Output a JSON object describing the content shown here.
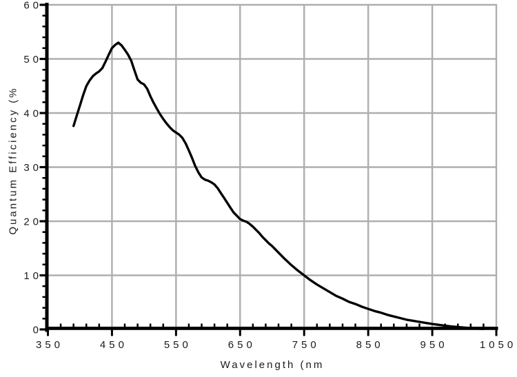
{
  "chart_data": {
    "type": "line",
    "title": "",
    "xlabel": "Wavelength (nm",
    "ylabel": "Quantum Efficiency (%",
    "xlim": [
      350,
      1050
    ],
    "ylim": [
      0,
      60
    ],
    "x_major_ticks": [
      350,
      450,
      550,
      650,
      750,
      850,
      950,
      1050
    ],
    "x_tick_labels": [
      "350",
      "450",
      "550",
      "650",
      "750",
      "850",
      "950",
      "1050"
    ],
    "x_minor_step": 20,
    "y_major_ticks": [
      0,
      10,
      20,
      30,
      40,
      50,
      60
    ],
    "y_tick_labels": [
      "0",
      "10",
      "20",
      "30",
      "40",
      "50",
      "60"
    ],
    "y_minor_step": 2,
    "grid": true,
    "legend": "none",
    "series": [
      {
        "name": "quantum-efficiency-curve",
        "x": [
          390,
          395,
          400,
          405,
          410,
          415,
          420,
          425,
          430,
          435,
          440,
          445,
          450,
          455,
          460,
          465,
          470,
          475,
          480,
          485,
          490,
          495,
          500,
          505,
          510,
          515,
          520,
          525,
          530,
          535,
          540,
          545,
          550,
          555,
          560,
          565,
          570,
          575,
          580,
          585,
          590,
          595,
          600,
          605,
          610,
          615,
          620,
          625,
          630,
          635,
          640,
          645,
          650,
          655,
          660,
          665,
          670,
          675,
          680,
          685,
          690,
          695,
          700,
          710,
          720,
          730,
          740,
          750,
          760,
          770,
          780,
          790,
          800,
          810,
          820,
          830,
          840,
          850,
          860,
          870,
          880,
          890,
          900,
          910,
          920,
          930,
          940,
          950,
          960,
          970,
          980,
          990,
          1000,
          1010,
          1020,
          1030
        ],
        "y": [
          37.6,
          39.5,
          41.4,
          43.3,
          45.0,
          46.0,
          46.8,
          47.3,
          47.7,
          48.3,
          49.5,
          50.8,
          52.0,
          52.6,
          53.0,
          52.5,
          51.7,
          50.8,
          49.7,
          47.9,
          46.2,
          45.6,
          45.3,
          44.5,
          43.1,
          41.9,
          40.8,
          39.8,
          38.9,
          38.1,
          37.4,
          36.8,
          36.4,
          36.0,
          35.4,
          34.4,
          33.1,
          31.7,
          30.2,
          29.0,
          28.1,
          27.7,
          27.5,
          27.2,
          26.8,
          26.1,
          25.2,
          24.3,
          23.4,
          22.5,
          21.6,
          21.0,
          20.4,
          20.1,
          19.9,
          19.5,
          19.0,
          18.4,
          17.8,
          17.1,
          16.5,
          15.9,
          15.4,
          14.2,
          13.0,
          11.9,
          10.9,
          10.0,
          9.1,
          8.3,
          7.6,
          6.9,
          6.2,
          5.7,
          5.1,
          4.7,
          4.2,
          3.8,
          3.4,
          3.1,
          2.7,
          2.4,
          2.1,
          1.8,
          1.6,
          1.4,
          1.2,
          1.0,
          0.85,
          0.7,
          0.55,
          0.45,
          0.35,
          0.25,
          0.15,
          0.1
        ]
      }
    ],
    "colors": {
      "line": "#000000",
      "grid": "#aeaeae",
      "axis": "#000000",
      "text": "#1a1a1a",
      "background": "#ffffff"
    }
  }
}
